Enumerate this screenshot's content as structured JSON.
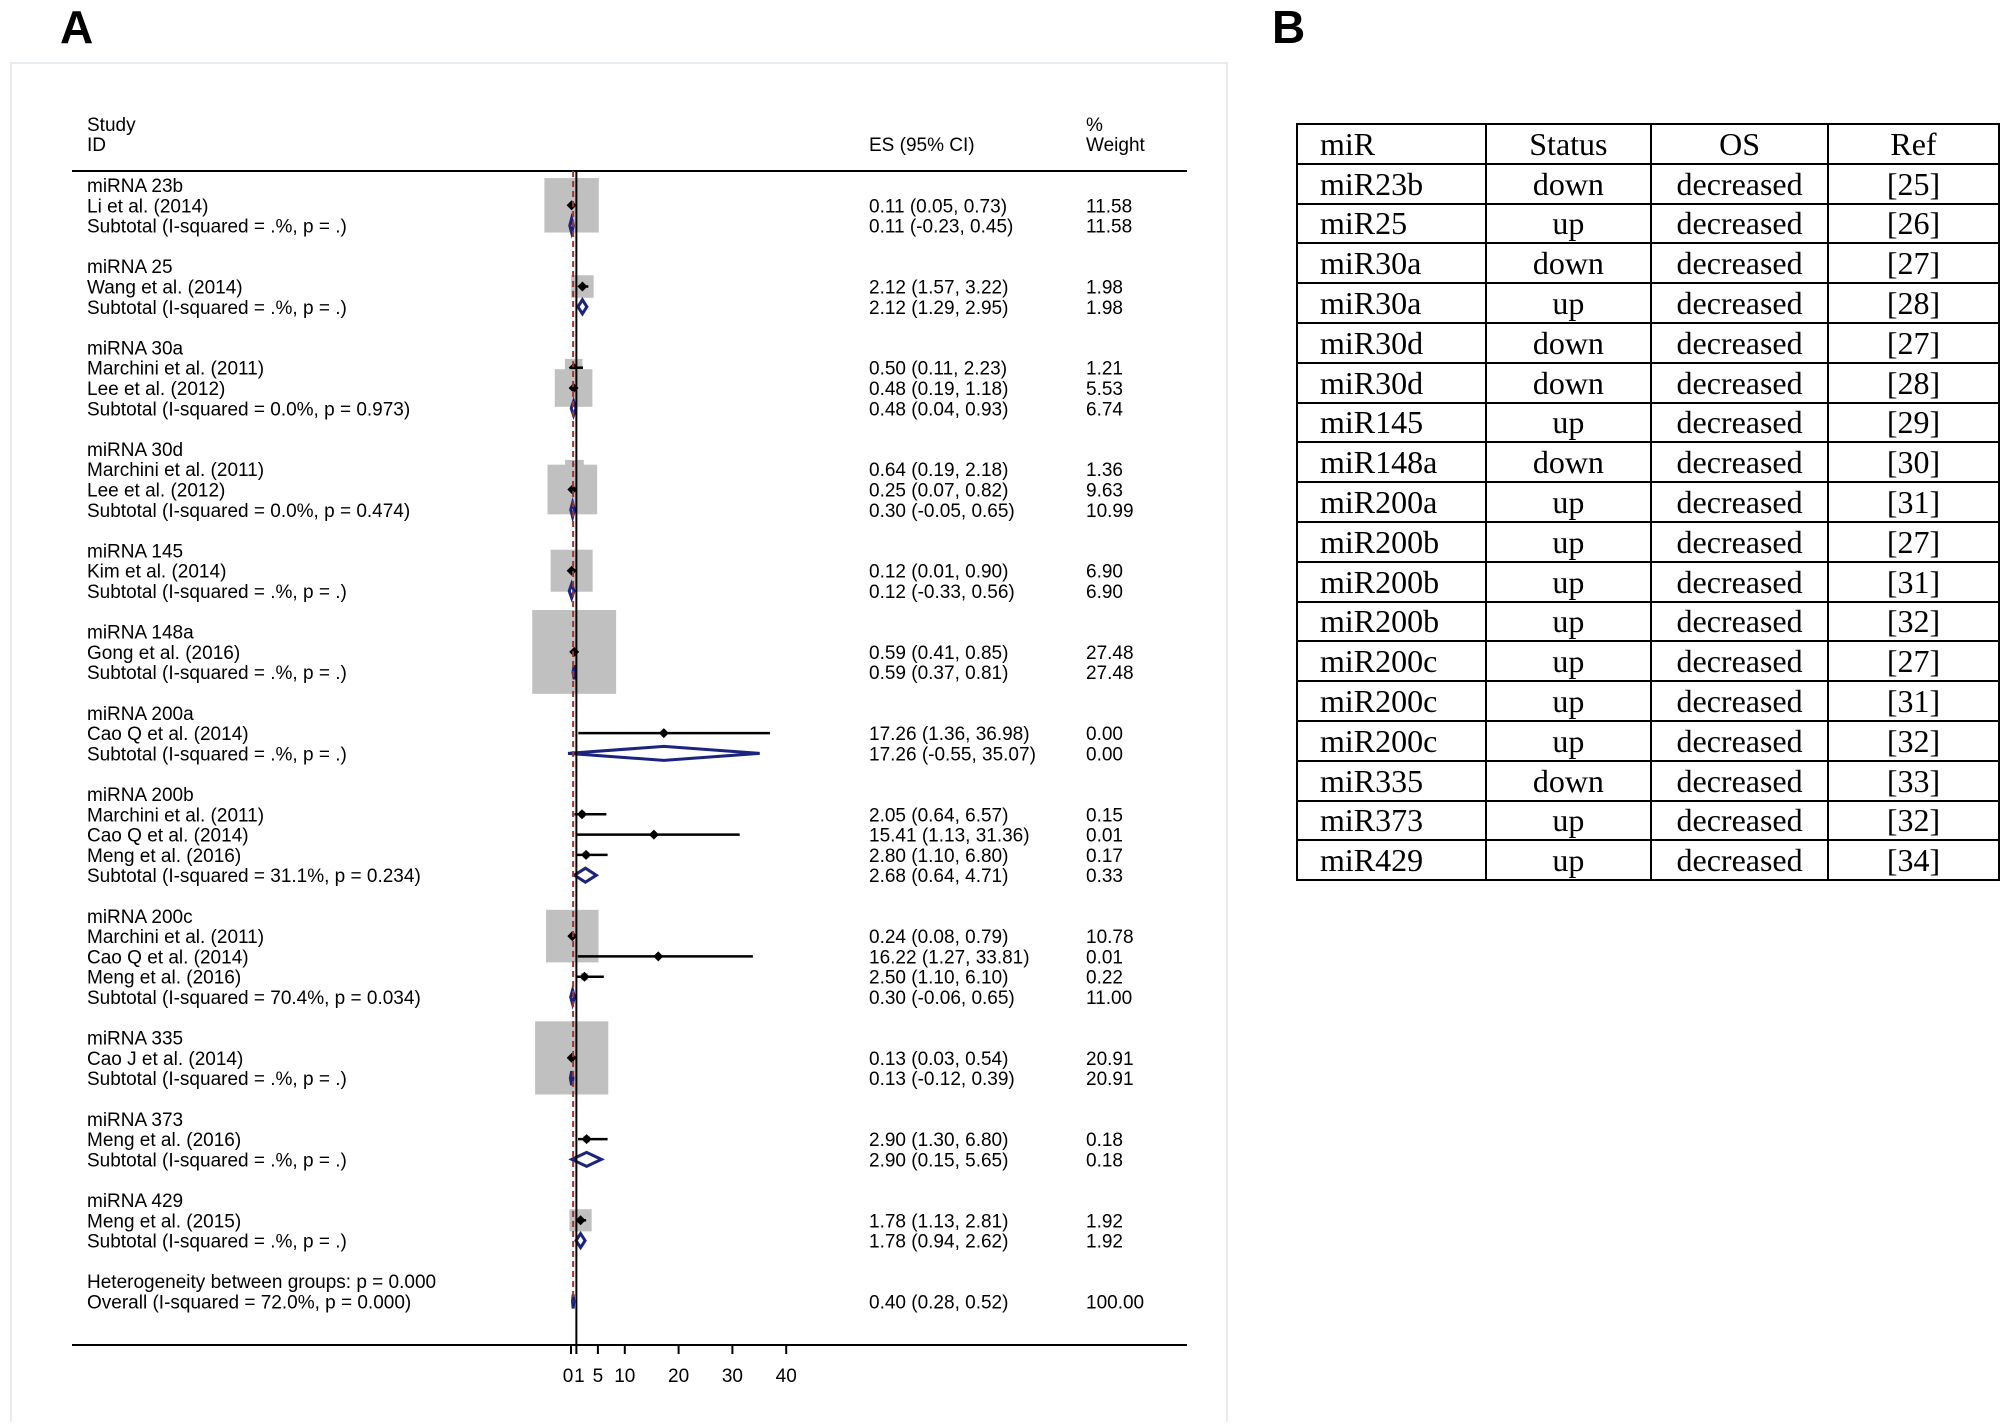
{
  "panels": {
    "a_label": "A",
    "b_label": "B"
  },
  "chart_data": [
    {
      "type": "forest",
      "header": {
        "study": "Study",
        "id": "ID",
        "es": "ES (95% CI)",
        "weight_pct": "%",
        "weight": "Weight"
      },
      "x_ticks": [
        "0",
        "1",
        "5",
        "10",
        "20",
        "30",
        "40"
      ],
      "reference_lines": {
        "null": 1,
        "overall": 0.4
      },
      "rows": [
        {
          "kind": "group",
          "label": "miRNA 23b"
        },
        {
          "kind": "study",
          "label": "Li et al. (2014)",
          "es": 0.11,
          "lo": 0.05,
          "hi": 0.73,
          "ci_text": "0.11 (0.05, 0.73)",
          "weight": 11.58,
          "weight_text": "11.58"
        },
        {
          "kind": "subtotal",
          "label": "Subtotal  (I-squared = .%, p = .)",
          "es": 0.11,
          "lo": -0.23,
          "hi": 0.45,
          "ci_text": "0.11 (-0.23, 0.45)",
          "weight": 11.58,
          "weight_text": "11.58"
        },
        {
          "kind": "group",
          "label": "miRNA 25"
        },
        {
          "kind": "study",
          "label": "Wang et al. (2014)",
          "es": 2.12,
          "lo": 1.57,
          "hi": 3.22,
          "ci_text": "2.12 (1.57, 3.22)",
          "weight": 1.98,
          "weight_text": "1.98"
        },
        {
          "kind": "subtotal",
          "label": "Subtotal  (I-squared = .%, p = .)",
          "es": 2.12,
          "lo": 1.29,
          "hi": 2.95,
          "ci_text": "2.12 (1.29, 2.95)",
          "weight": 1.98,
          "weight_text": "1.98"
        },
        {
          "kind": "group",
          "label": "miRNA 30a"
        },
        {
          "kind": "study",
          "label": "Marchini et al. (2011)",
          "es": 0.5,
          "lo": 0.11,
          "hi": 2.23,
          "ci_text": "0.50 (0.11, 2.23)",
          "weight": 1.21,
          "weight_text": "1.21"
        },
        {
          "kind": "study",
          "label": "Lee et al. (2012)",
          "es": 0.48,
          "lo": 0.19,
          "hi": 1.18,
          "ci_text": "0.48 (0.19, 1.18)",
          "weight": 5.53,
          "weight_text": "5.53"
        },
        {
          "kind": "subtotal",
          "label": "Subtotal  (I-squared = 0.0%, p = 0.973)",
          "es": 0.48,
          "lo": 0.04,
          "hi": 0.93,
          "ci_text": "0.48 (0.04, 0.93)",
          "weight": 6.74,
          "weight_text": "6.74"
        },
        {
          "kind": "group",
          "label": "miRNA 30d"
        },
        {
          "kind": "study",
          "label": "Marchini et al. (2011)",
          "es": 0.64,
          "lo": 0.19,
          "hi": 2.18,
          "ci_text": "0.64 (0.19, 2.18)",
          "weight": 1.36,
          "weight_text": "1.36"
        },
        {
          "kind": "study",
          "label": "Lee et al. (2012)",
          "es": 0.25,
          "lo": 0.07,
          "hi": 0.82,
          "ci_text": "0.25 (0.07, 0.82)",
          "weight": 9.63,
          "weight_text": "9.63"
        },
        {
          "kind": "subtotal",
          "label": "Subtotal  (I-squared = 0.0%, p = 0.474)",
          "es": 0.3,
          "lo": -0.05,
          "hi": 0.65,
          "ci_text": "0.30 (-0.05, 0.65)",
          "weight": 10.99,
          "weight_text": "10.99"
        },
        {
          "kind": "group",
          "label": "miRNA 145"
        },
        {
          "kind": "study",
          "label": "Kim et al. (2014)",
          "es": 0.12,
          "lo": 0.01,
          "hi": 0.9,
          "ci_text": "0.12 (0.01, 0.90)",
          "weight": 6.9,
          "weight_text": "6.90"
        },
        {
          "kind": "subtotal",
          "label": "Subtotal  (I-squared = .%, p = .)",
          "es": 0.12,
          "lo": -0.33,
          "hi": 0.56,
          "ci_text": "0.12 (-0.33, 0.56)",
          "weight": 6.9,
          "weight_text": "6.90"
        },
        {
          "kind": "group",
          "label": "miRNA 148a"
        },
        {
          "kind": "study",
          "label": "Gong et al. (2016)",
          "es": 0.59,
          "lo": 0.41,
          "hi": 0.85,
          "ci_text": "0.59 (0.41, 0.85)",
          "weight": 27.48,
          "weight_text": "27.48"
        },
        {
          "kind": "subtotal",
          "label": "Subtotal  (I-squared = .%, p = .)",
          "es": 0.59,
          "lo": 0.37,
          "hi": 0.81,
          "ci_text": "0.59 (0.37, 0.81)",
          "weight": 27.48,
          "weight_text": "27.48"
        },
        {
          "kind": "group",
          "label": "miRNA 200a"
        },
        {
          "kind": "study",
          "label": "Cao Q et al. (2014)",
          "es": 17.26,
          "lo": 1.36,
          "hi": 36.98,
          "ci_text": "17.26 (1.36, 36.98)",
          "weight": 0.0,
          "weight_text": "0.00"
        },
        {
          "kind": "subtotal",
          "label": "Subtotal  (I-squared = .%, p = .)",
          "es": 17.26,
          "lo": -0.55,
          "hi": 35.07,
          "ci_text": "17.26 (-0.55, 35.07)",
          "weight": 0.0,
          "weight_text": "0.00"
        },
        {
          "kind": "group",
          "label": "miRNA 200b"
        },
        {
          "kind": "study",
          "label": "Marchini et al. (2011)",
          "es": 2.05,
          "lo": 0.64,
          "hi": 6.57,
          "ci_text": "2.05 (0.64, 6.57)",
          "weight": 0.15,
          "weight_text": "0.15"
        },
        {
          "kind": "study",
          "label": "Cao Q et al. (2014)",
          "es": 15.41,
          "lo": 1.13,
          "hi": 31.36,
          "ci_text": "15.41 (1.13, 31.36)",
          "weight": 0.01,
          "weight_text": "0.01"
        },
        {
          "kind": "study",
          "label": "Meng et al. (2016)",
          "es": 2.8,
          "lo": 1.1,
          "hi": 6.8,
          "ci_text": "2.80 (1.10, 6.80)",
          "weight": 0.17,
          "weight_text": "0.17"
        },
        {
          "kind": "subtotal",
          "label": "Subtotal  (I-squared = 31.1%, p = 0.234)",
          "es": 2.68,
          "lo": 0.64,
          "hi": 4.71,
          "ci_text": "2.68 (0.64, 4.71)",
          "weight": 0.33,
          "weight_text": "0.33"
        },
        {
          "kind": "group",
          "label": "miRNA 200c"
        },
        {
          "kind": "study",
          "label": "Marchini et al. (2011)",
          "es": 0.24,
          "lo": 0.08,
          "hi": 0.79,
          "ci_text": "0.24 (0.08, 0.79)",
          "weight": 10.78,
          "weight_text": "10.78"
        },
        {
          "kind": "study",
          "label": "Cao Q et al. (2014)",
          "es": 16.22,
          "lo": 1.27,
          "hi": 33.81,
          "ci_text": "16.22 (1.27, 33.81)",
          "weight": 0.01,
          "weight_text": "0.01"
        },
        {
          "kind": "study",
          "label": "Meng et al. (2016)",
          "es": 2.5,
          "lo": 1.1,
          "hi": 6.1,
          "ci_text": "2.50 (1.10, 6.10)",
          "weight": 0.22,
          "weight_text": "0.22"
        },
        {
          "kind": "subtotal",
          "label": "Subtotal  (I-squared = 70.4%, p = 0.034)",
          "es": 0.3,
          "lo": -0.06,
          "hi": 0.65,
          "ci_text": "0.30 (-0.06, 0.65)",
          "weight": 11.0,
          "weight_text": "11.00"
        },
        {
          "kind": "group",
          "label": "miRNA 335"
        },
        {
          "kind": "study",
          "label": "Cao J et al. (2014)",
          "es": 0.13,
          "lo": 0.03,
          "hi": 0.54,
          "ci_text": "0.13 (0.03, 0.54)",
          "weight": 20.91,
          "weight_text": "20.91"
        },
        {
          "kind": "subtotal",
          "label": "Subtotal  (I-squared = .%, p = .)",
          "es": 0.13,
          "lo": -0.12,
          "hi": 0.39,
          "ci_text": "0.13 (-0.12, 0.39)",
          "weight": 20.91,
          "weight_text": "20.91"
        },
        {
          "kind": "group",
          "label": "miRNA 373"
        },
        {
          "kind": "study",
          "label": "Meng et al. (2016)",
          "es": 2.9,
          "lo": 1.3,
          "hi": 6.8,
          "ci_text": "2.90 (1.30, 6.80)",
          "weight": 0.18,
          "weight_text": "0.18"
        },
        {
          "kind": "subtotal",
          "label": "Subtotal  (I-squared = .%, p = .)",
          "es": 2.9,
          "lo": 0.15,
          "hi": 5.65,
          "ci_text": "2.90 (0.15, 5.65)",
          "weight": 0.18,
          "weight_text": "0.18"
        },
        {
          "kind": "group",
          "label": "miRNA 429"
        },
        {
          "kind": "study",
          "label": "Meng et al. (2015)",
          "es": 1.78,
          "lo": 1.13,
          "hi": 2.81,
          "ci_text": "1.78 (1.13, 2.81)",
          "weight": 1.92,
          "weight_text": "1.92"
        },
        {
          "kind": "subtotal",
          "label": "Subtotal  (I-squared = .%, p = .)",
          "es": 1.78,
          "lo": 0.94,
          "hi": 2.62,
          "ci_text": "1.78 (0.94, 2.62)",
          "weight": 1.92,
          "weight_text": "1.92"
        },
        {
          "kind": "group",
          "label": "Heterogeneity between groups: p = 0.000"
        },
        {
          "kind": "overall",
          "label": "Overall  (I-squared = 72.0%, p = 0.000)",
          "es": 0.4,
          "lo": 0.28,
          "hi": 0.52,
          "ci_text": "0.40 (0.28, 0.52)",
          "weight": 100.0,
          "weight_text": "100.00"
        }
      ]
    },
    {
      "type": "table",
      "columns": [
        "miR",
        "Status",
        "OS",
        "Ref"
      ],
      "rows": [
        [
          "miR23b",
          "down",
          "decreased",
          "[25]"
        ],
        [
          "miR25",
          "up",
          "decreased",
          "[26]"
        ],
        [
          "miR30a",
          "down",
          "decreased",
          "[27]"
        ],
        [
          "miR30a",
          "up",
          "decreased",
          "[28]"
        ],
        [
          "miR30d",
          "down",
          "decreased",
          "[27]"
        ],
        [
          "miR30d",
          "down",
          "decreased",
          "[28]"
        ],
        [
          "miR145",
          "up",
          "decreased",
          "[29]"
        ],
        [
          "miR148a",
          "down",
          "decreased",
          "[30]"
        ],
        [
          "miR200a",
          "up",
          "decreased",
          "[31]"
        ],
        [
          "miR200b",
          "up",
          "decreased",
          "[27]"
        ],
        [
          "miR200b",
          "up",
          "decreased",
          "[31]"
        ],
        [
          "miR200b",
          "up",
          "decreased",
          "[32]"
        ],
        [
          "miR200c",
          "up",
          "decreased",
          "[27]"
        ],
        [
          "miR200c",
          "up",
          "decreased",
          "[31]"
        ],
        [
          "miR200c",
          "up",
          "decreased",
          "[32]"
        ],
        [
          "miR335",
          "down",
          "decreased",
          "[33]"
        ],
        [
          "miR373",
          "up",
          "decreased",
          "[32]"
        ],
        [
          "miR429",
          "up",
          "decreased",
          "[34]"
        ]
      ]
    }
  ],
  "colors": {
    "box": "#c0c0c0",
    "diamond": "#1a237e",
    "refline": "#a0362a",
    "text": "#000000"
  }
}
